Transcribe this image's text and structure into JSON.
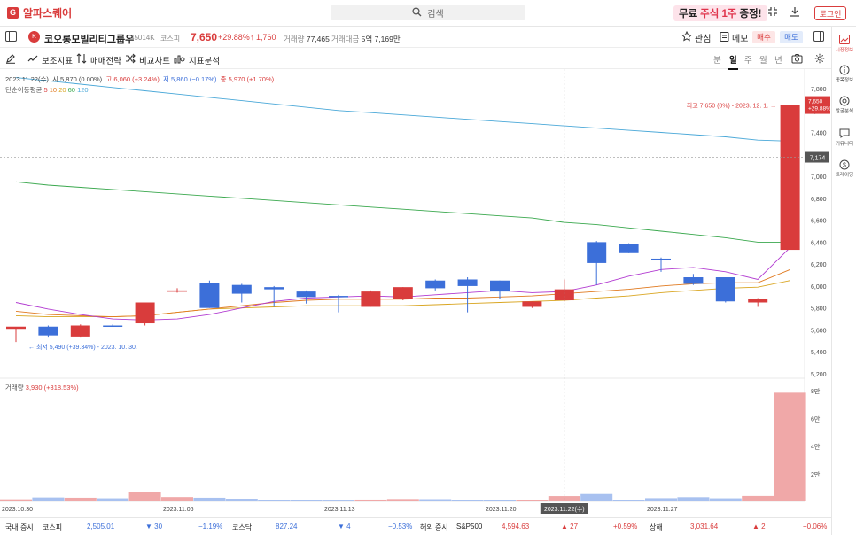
{
  "app": {
    "logo_glyph": "G",
    "title": "알파스퀘어",
    "search_placeholder": "검색",
    "promo_pre": "무료",
    "promo_hl": "주식 1주",
    "promo_post": "증정!",
    "login_label": "로그인",
    "icons": [
      "expand-icon",
      "download-icon"
    ]
  },
  "stock": {
    "logo_glyph": "K",
    "name": "코오롱모빌리티그룹우",
    "code": "45014K",
    "market": "코스피",
    "price": "7,650",
    "rate": "+29.88%",
    "change": "↑ 1,760",
    "volume_label": "거래량",
    "volume": "77,465",
    "amount_label": "거래대금",
    "amount": "5억 7,169만",
    "watch_label": "관심",
    "memo_label": "메모",
    "buy_label": "매수",
    "sell_label": "매도"
  },
  "toolbar": {
    "indicator_label": "보조지표",
    "strategy_label": "매매전략",
    "compare_label": "비교차트",
    "analysis_label": "지표분석",
    "periods": [
      "분",
      "일",
      "주",
      "월",
      "년"
    ],
    "active_period": "일"
  },
  "info": {
    "date": "2023.11.22(수)",
    "open": "시 5,870 (0.00%)",
    "high": "고 6,060 (+3.24%)",
    "low": "저 5,860 (−0.17%)",
    "close": "종 5,970 (+1.70%)",
    "ma_title": "단순이동평균",
    "ma_periods": [
      {
        "label": "5",
        "color": "#d93c3c"
      },
      {
        "label": "10",
        "color": "#e07a20"
      },
      {
        "label": "20",
        "color": "#d9a520"
      },
      {
        "label": "60",
        "color": "#3aa84e"
      },
      {
        "label": "120",
        "color": "#4aa8d8"
      }
    ],
    "volume_title": "거래량",
    "volume_value": "3,930 (+318.53%)"
  },
  "chart_data": {
    "type": "candlestick",
    "dates": [
      "2023.10.30",
      "2023.10.31",
      "2023.11.01",
      "2023.11.02",
      "2023.11.03",
      "2023.11.06",
      "2023.11.07",
      "2023.11.08",
      "2023.11.09",
      "2023.11.10",
      "2023.11.13",
      "2023.11.14",
      "2023.11.15",
      "2023.11.16",
      "2023.11.17",
      "2023.11.20",
      "2023.11.21",
      "2023.11.22",
      "2023.11.23",
      "2023.11.24",
      "2023.11.27",
      "2023.11.28",
      "2023.11.29",
      "2023.11.30",
      "2023.12.01"
    ],
    "candles": [
      {
        "o": 5610,
        "h": 5620,
        "l": 5490,
        "c": 5630,
        "up": true
      },
      {
        "o": 5630,
        "h": 5640,
        "l": 5530,
        "c": 5550,
        "up": false
      },
      {
        "o": 5540,
        "h": 5650,
        "l": 5530,
        "c": 5640,
        "up": true
      },
      {
        "o": 5640,
        "h": 5650,
        "l": 5630,
        "c": 5640,
        "up": false
      },
      {
        "o": 5660,
        "h": 5850,
        "l": 5640,
        "c": 5850,
        "up": true
      },
      {
        "o": 5950,
        "h": 5980,
        "l": 5940,
        "c": 5960,
        "up": true
      },
      {
        "o": 6030,
        "h": 6050,
        "l": 5800,
        "c": 5800,
        "up": false
      },
      {
        "o": 6010,
        "h": 6020,
        "l": 5850,
        "c": 5930,
        "up": false
      },
      {
        "o": 5990,
        "h": 6000,
        "l": 5810,
        "c": 5970,
        "up": false
      },
      {
        "o": 5950,
        "h": 5960,
        "l": 5840,
        "c": 5900,
        "up": false
      },
      {
        "o": 5910,
        "h": 5920,
        "l": 5760,
        "c": 5900,
        "up": false
      },
      {
        "o": 5810,
        "h": 5960,
        "l": 5810,
        "c": 5950,
        "up": true
      },
      {
        "o": 5880,
        "h": 5990,
        "l": 5870,
        "c": 5990,
        "up": true
      },
      {
        "o": 6050,
        "h": 6060,
        "l": 5960,
        "c": 5980,
        "up": false
      },
      {
        "o": 6060,
        "h": 6080,
        "l": 5760,
        "c": 6000,
        "up": false
      },
      {
        "o": 6050,
        "h": 6050,
        "l": 5880,
        "c": 5950,
        "up": false
      },
      {
        "o": 5810,
        "h": 5860,
        "l": 5800,
        "c": 5860,
        "up": true
      },
      {
        "o": 5870,
        "h": 6060,
        "l": 5860,
        "c": 5970,
        "up": true
      },
      {
        "o": 6400,
        "h": 6410,
        "l": 6010,
        "c": 6210,
        "up": false
      },
      {
        "o": 6380,
        "h": 6390,
        "l": 6300,
        "c": 6300,
        "up": false
      },
      {
        "o": 6250,
        "h": 6260,
        "l": 6130,
        "c": 6240,
        "up": false
      },
      {
        "o": 6080,
        "h": 6110,
        "l": 6010,
        "c": 6020,
        "up": false
      },
      {
        "o": 6080,
        "h": 6080,
        "l": 5850,
        "c": 5860,
        "up": false
      },
      {
        "o": 5850,
        "h": 5890,
        "l": 5810,
        "c": 5880,
        "up": true
      },
      {
        "o": 6330,
        "h": 7650,
        "l": 6330,
        "c": 7650,
        "up": true
      }
    ],
    "volumes": [
      150,
      280,
      260,
      220,
      650,
      310,
      260,
      190,
      100,
      110,
      60,
      130,
      170,
      160,
      110,
      110,
      90,
      380,
      530,
      120,
      230,
      300,
      220,
      390,
      7850
    ],
    "ma5": [
      5850,
      5790,
      5740,
      5700,
      5690,
      5700,
      5740,
      5800,
      5860,
      5890,
      5900,
      5910,
      5900,
      5920,
      5940,
      5960,
      5940,
      5950,
      6010,
      6090,
      6150,
      6170,
      6130,
      6060,
      6350
    ],
    "ma10": [
      5770,
      5740,
      5730,
      5720,
      5730,
      5760,
      5790,
      5820,
      5850,
      5870,
      5880,
      5880,
      5880,
      5890,
      5890,
      5900,
      5910,
      5930,
      5950,
      5970,
      6000,
      6020,
      6030,
      6030,
      6150
    ],
    "ma20": [
      5730,
      5720,
      5720,
      5720,
      5730,
      5760,
      5790,
      5800,
      5810,
      5820,
      5820,
      5820,
      5820,
      5830,
      5840,
      5850,
      5860,
      5870,
      5890,
      5910,
      5940,
      5960,
      5980,
      5990,
      6050
    ],
    "ma60": [
      6950,
      6920,
      6900,
      6880,
      6860,
      6840,
      6820,
      6800,
      6780,
      6760,
      6740,
      6720,
      6700,
      6680,
      6660,
      6640,
      6620,
      6580,
      6560,
      6530,
      6500,
      6470,
      6440,
      6400,
      6400
    ],
    "ma120": [
      7900,
      7870,
      7840,
      7810,
      7780,
      7750,
      7720,
      7690,
      7660,
      7630,
      7600,
      7580,
      7560,
      7540,
      7520,
      7500,
      7480,
      7460,
      7440,
      7420,
      7400,
      7380,
      7360,
      7330,
      7320
    ],
    "price_axis": [
      "7,800",
      "7,600",
      "7,400",
      "7,200",
      "7,000",
      "6,800",
      "6,600",
      "6,400",
      "6,200",
      "6,000",
      "5,800",
      "5,600",
      "5,400",
      "5,200"
    ],
    "volume_axis": [
      "8만",
      "6만",
      "4만",
      "2만"
    ],
    "x_labels": [
      "2023.10.30",
      "2023.11.06",
      "2023.11.13",
      "2023.11.20",
      "2023.11.27"
    ],
    "crosshair_date": "2023.11.22(수)",
    "crosshair_price": "7,174",
    "last_price": "7,650",
    "last_rate": "+29.88%",
    "high_note": "최고 7,650 (0%) - 2023. 12. 1.",
    "low_note": "← 최저 5,490 (+39.34%) - 2023. 10. 30."
  },
  "ticker": {
    "kr_title": "국내 증시",
    "kospi_name": "코스피",
    "kospi_value": "2,505.01",
    "kospi_change": "▼ 30",
    "kospi_rate": "−1.19%",
    "kosdaq_name": "코스닥",
    "kosdaq_value": "827.24",
    "kosdaq_change": "▼ 4",
    "kosdaq_rate": "−0.53%",
    "global_title": "해외 증시",
    "sp_name": "S&P500",
    "sp_value": "4,594.63",
    "sp_change": "▲ 27",
    "sp_rate": "+0.59%",
    "sh_name": "상해",
    "sh_value": "3,031.64",
    "sh_change": "▲ 2",
    "sh_rate": "+0.06%"
  },
  "sidebar": {
    "items": [
      "시장정보",
      "종목정보",
      "발굴분석",
      "커뮤니티",
      "트레이딩"
    ]
  }
}
